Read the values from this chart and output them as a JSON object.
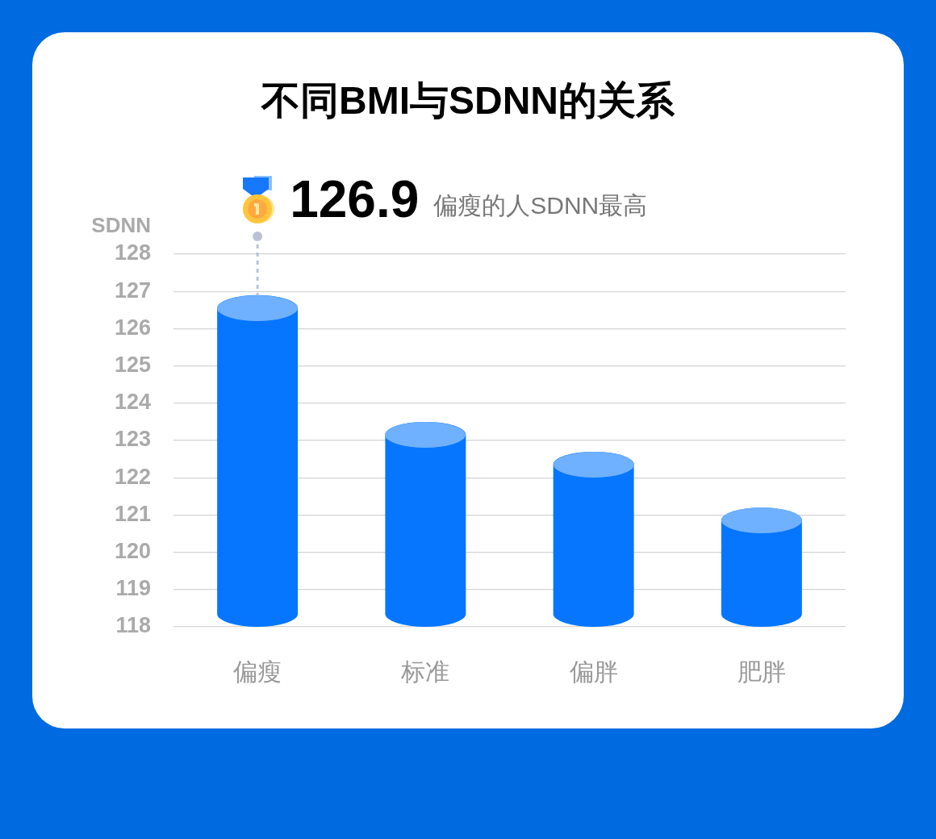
{
  "chart_data": {
    "type": "bar",
    "title": "不同BMI与SDNN的关系",
    "ylabel": "SDNN",
    "categories": [
      "偏瘦",
      "标准",
      "偏胖",
      "肥胖"
    ],
    "values": [
      126.9,
      123.5,
      122.7,
      121.2
    ],
    "color": "#0676ff",
    "ylim": [
      118,
      128
    ],
    "yticks": [
      118,
      119,
      120,
      121,
      122,
      123,
      124,
      125,
      126,
      127,
      128
    ],
    "grid": "y",
    "annotations": [
      {
        "text": "126.9",
        "x": "偏瘦",
        "y": 126.9
      },
      "偏瘦的人SDNN最高"
    ]
  }
}
